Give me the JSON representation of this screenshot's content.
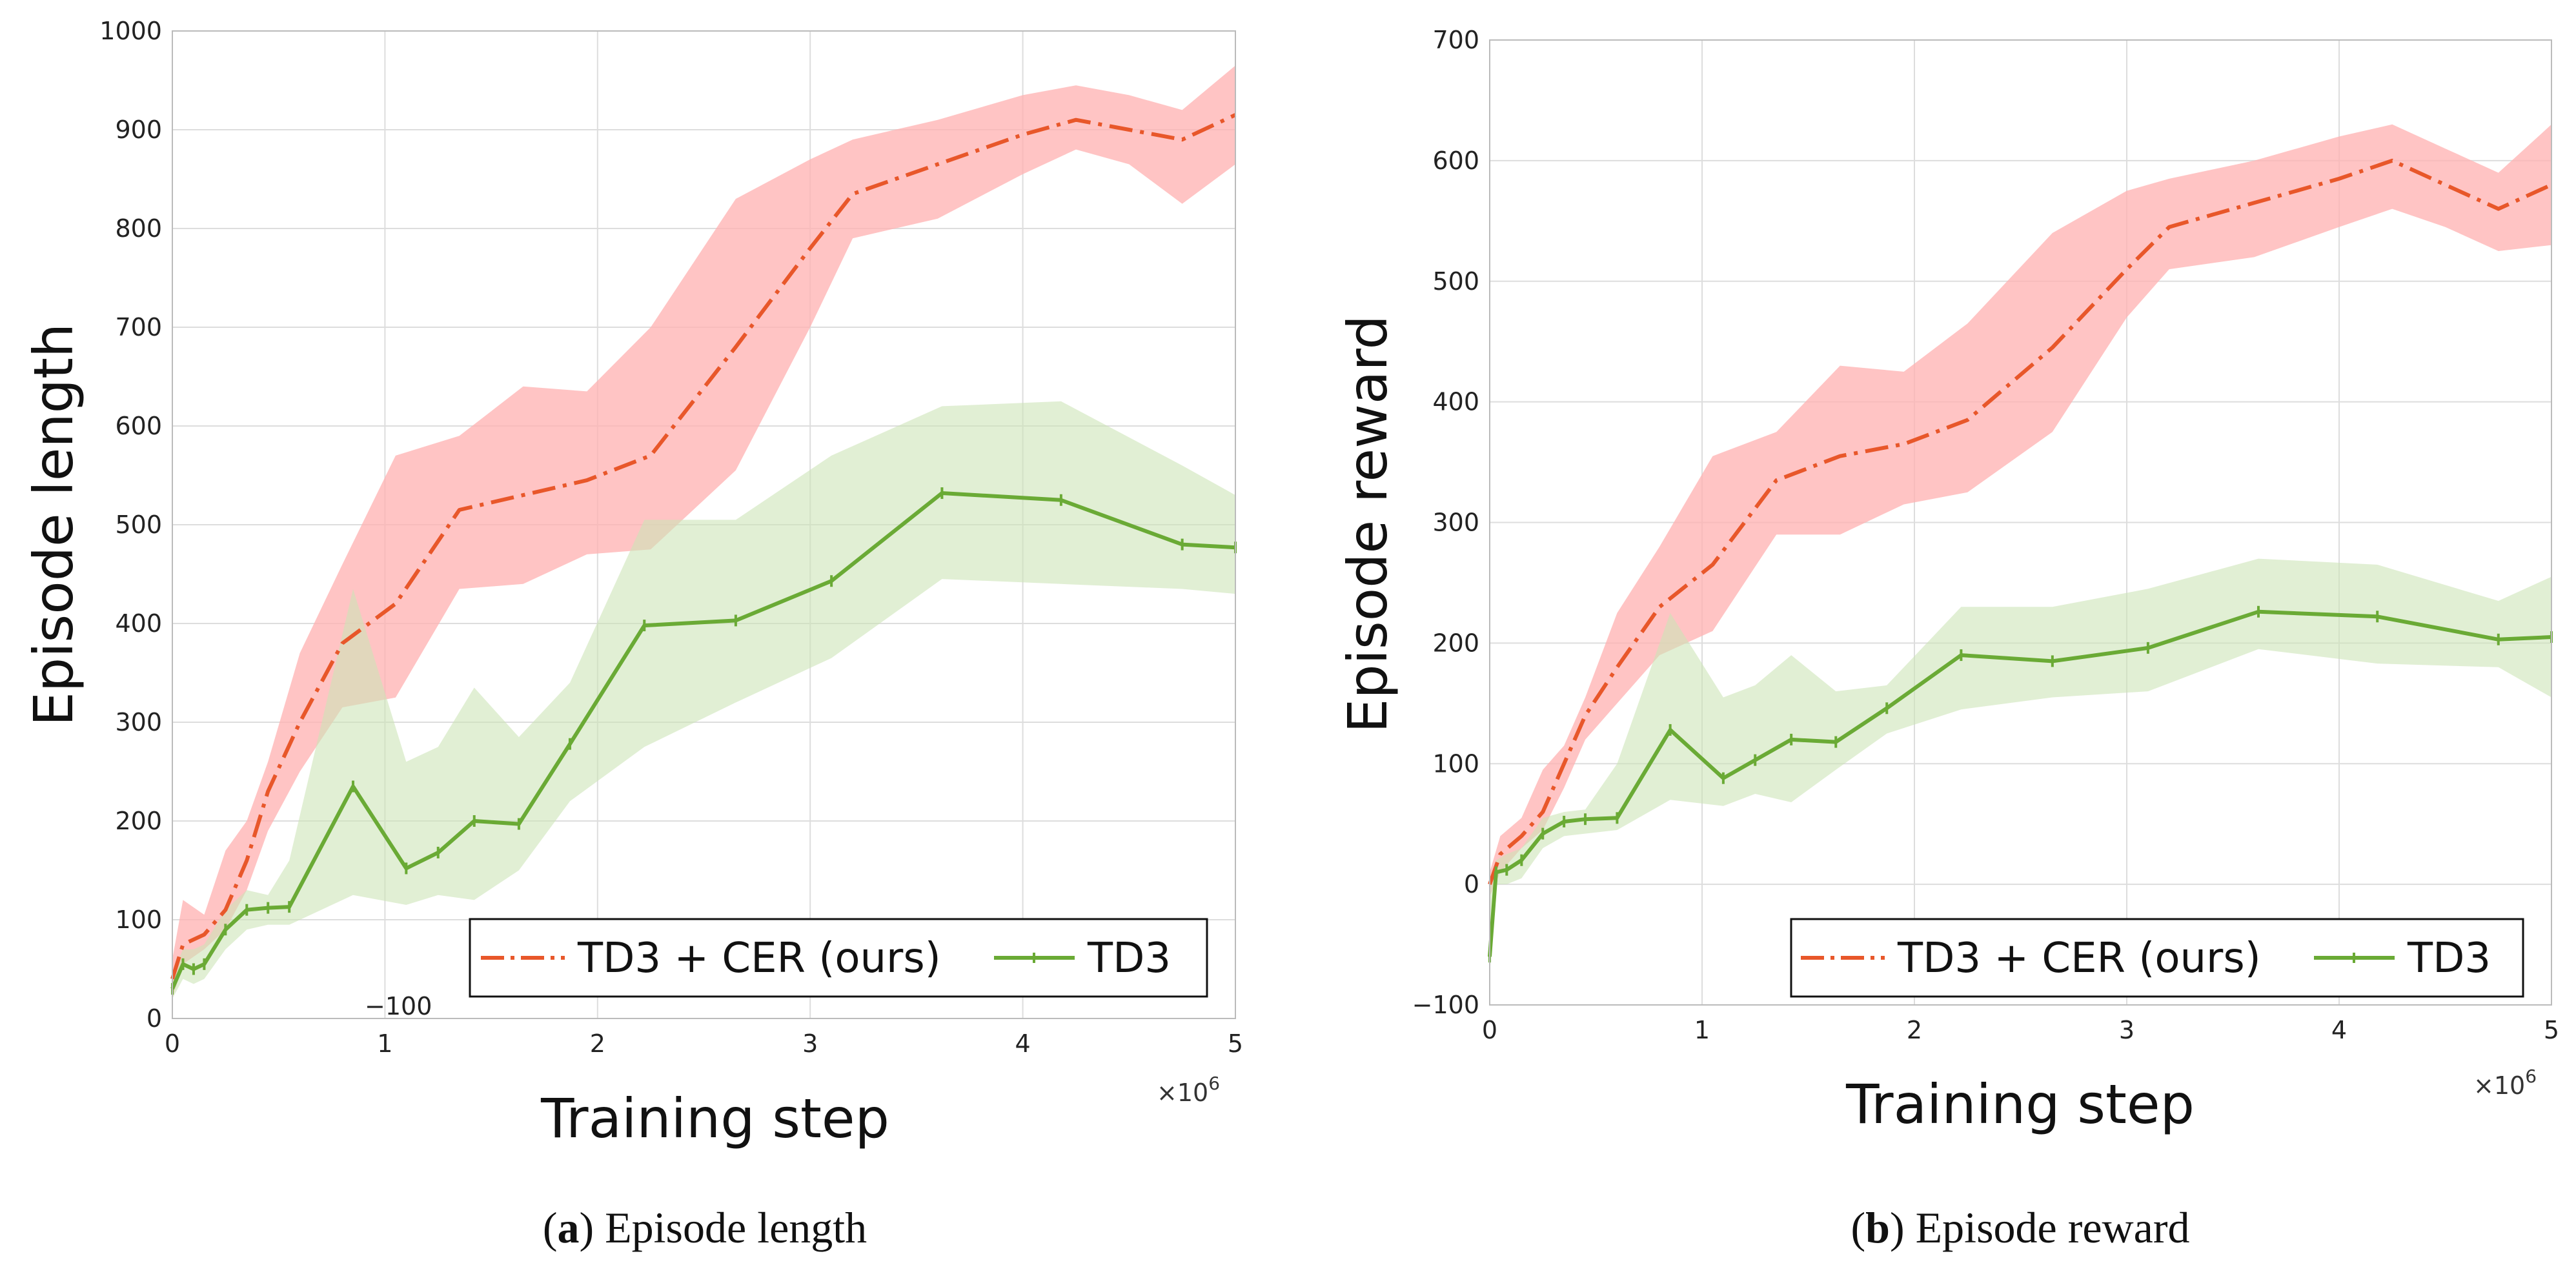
{
  "chart_data": [
    {
      "type": "line",
      "id": "a",
      "xlabel": "Training step",
      "ylabel": "Episode length",
      "xlim": [
        0,
        5
      ],
      "ylim": [
        0,
        1000
      ],
      "xticks": [
        "0",
        "1",
        "2",
        "3",
        "4",
        "5"
      ],
      "yticks": [
        "0",
        "100",
        "200",
        "300",
        "400",
        "500",
        "600",
        "700",
        "800",
        "900",
        "1000"
      ],
      "x_multiplier": "×10",
      "x_multiplier_exp": "6",
      "stray_label": "−100",
      "caption_letter": "a",
      "caption_text": " Episode length",
      "legend": [
        "TD3 + CER (ours)",
        "TD3"
      ],
      "series": [
        {
          "name": "TD3 + CER (ours)",
          "color": "#e8572a",
          "band_color": "#ffb0b0",
          "style": "dashdot",
          "x": [
            0,
            0.05,
            0.15,
            0.25,
            0.35,
            0.45,
            0.6,
            0.8,
            1.05,
            1.35,
            1.65,
            1.95,
            2.25,
            2.65,
            3.0,
            3.2,
            3.6,
            4.0,
            4.25,
            4.5,
            4.75,
            5.0
          ],
          "values": [
            40,
            75,
            85,
            110,
            160,
            230,
            300,
            380,
            420,
            515,
            530,
            545,
            570,
            680,
            780,
            835,
            865,
            895,
            910,
            900,
            890,
            915
          ],
          "lower": [
            20,
            55,
            70,
            90,
            130,
            190,
            250,
            315,
            325,
            435,
            440,
            470,
            475,
            555,
            700,
            790,
            810,
            855,
            880,
            865,
            825,
            865
          ],
          "upper": [
            60,
            120,
            105,
            170,
            200,
            260,
            370,
            460,
            570,
            590,
            640,
            635,
            700,
            830,
            870,
            890,
            910,
            935,
            945,
            935,
            920,
            965
          ]
        },
        {
          "name": "TD3",
          "color": "#6aaa35",
          "band_color": "#cde5b8",
          "style": "solid",
          "x": [
            0,
            0.05,
            0.1,
            0.15,
            0.25,
            0.35,
            0.45,
            0.55,
            0.85,
            1.1,
            1.25,
            1.42,
            1.63,
            1.87,
            2.22,
            2.65,
            3.1,
            3.62,
            4.18,
            4.75,
            5.0
          ],
          "values": [
            30,
            55,
            50,
            55,
            90,
            110,
            112,
            113,
            235,
            152,
            168,
            200,
            197,
            278,
            398,
            403,
            443,
            532,
            525,
            480,
            477
          ],
          "lower": [
            20,
            40,
            35,
            40,
            70,
            90,
            95,
            95,
            125,
            115,
            125,
            120,
            150,
            220,
            275,
            320,
            365,
            445,
            440,
            435,
            430
          ],
          "upper": [
            45,
            70,
            70,
            75,
            110,
            130,
            125,
            160,
            435,
            260,
            275,
            335,
            285,
            340,
            505,
            505,
            570,
            620,
            625,
            560,
            530
          ]
        }
      ]
    },
    {
      "type": "line",
      "id": "b",
      "xlabel": "Training step",
      "ylabel": "Episode reward",
      "xlim": [
        0,
        5
      ],
      "ylim": [
        -100,
        700
      ],
      "xticks": [
        "0",
        "1",
        "2",
        "3",
        "4",
        "5"
      ],
      "yticks": [
        "−100",
        "0",
        "100",
        "200",
        "300",
        "400",
        "500",
        "600",
        "700"
      ],
      "x_multiplier": "×10",
      "x_multiplier_exp": "6",
      "caption_letter": "b",
      "caption_text": " Episode reward",
      "legend": [
        "TD3 + CER (ours)",
        "TD3"
      ],
      "series": [
        {
          "name": "TD3 + CER (ours)",
          "color": "#e8572a",
          "band_color": "#ffb0b0",
          "style": "dashdot",
          "x": [
            0,
            0.05,
            0.15,
            0.25,
            0.35,
            0.45,
            0.6,
            0.8,
            1.05,
            1.35,
            1.65,
            1.95,
            2.25,
            2.65,
            3.0,
            3.2,
            3.6,
            4.0,
            4.25,
            4.5,
            4.75,
            5.0
          ],
          "values": [
            0,
            25,
            40,
            60,
            100,
            140,
            180,
            230,
            265,
            335,
            355,
            365,
            385,
            445,
            510,
            545,
            565,
            585,
            600,
            580,
            560,
            580
          ],
          "lower": [
            -10,
            10,
            30,
            45,
            80,
            120,
            150,
            190,
            210,
            290,
            290,
            315,
            325,
            375,
            470,
            510,
            520,
            545,
            560,
            545,
            525,
            530
          ],
          "upper": [
            10,
            40,
            55,
            95,
            115,
            155,
            225,
            280,
            355,
            375,
            430,
            425,
            465,
            540,
            575,
            585,
            600,
            620,
            630,
            610,
            590,
            630
          ]
        },
        {
          "name": "TD3",
          "color": "#6aaa35",
          "band_color": "#cde5b8",
          "style": "solid",
          "x": [
            0,
            0.03,
            0.08,
            0.15,
            0.25,
            0.35,
            0.45,
            0.6,
            0.85,
            1.1,
            1.25,
            1.42,
            1.63,
            1.87,
            2.22,
            2.65,
            3.1,
            3.62,
            4.18,
            4.75,
            5.0
          ],
          "values": [
            -60,
            10,
            12,
            20,
            42,
            52,
            54,
            55,
            128,
            88,
            103,
            120,
            118,
            146,
            190,
            185,
            196,
            226,
            222,
            203,
            205
          ],
          "lower": [
            -75,
            0,
            0,
            5,
            30,
            40,
            42,
            45,
            70,
            65,
            75,
            68,
            95,
            125,
            145,
            155,
            160,
            195,
            183,
            180,
            155
          ],
          "upper": [
            0,
            20,
            25,
            30,
            55,
            60,
            62,
            100,
            225,
            155,
            165,
            190,
            160,
            165,
            230,
            230,
            245,
            270,
            265,
            235,
            255
          ]
        }
      ]
    }
  ]
}
